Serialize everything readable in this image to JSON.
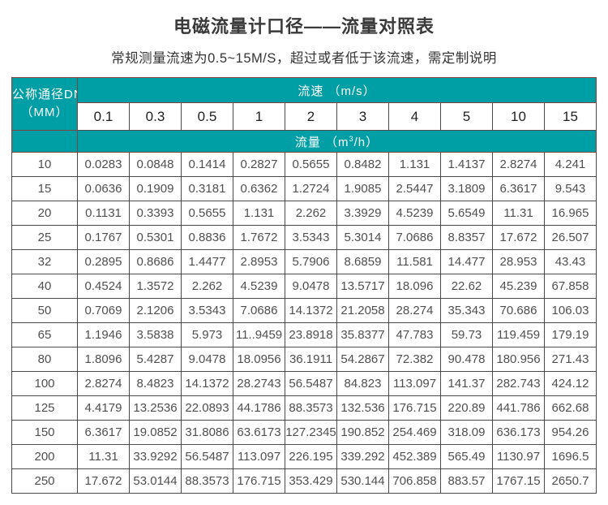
{
  "page": {
    "title": "电磁流量计口径——流量对照表",
    "subtitle": "常规测量流速为0.5~15M/S，超过或者低于该流速，需定制说明"
  },
  "colors": {
    "header_teal": "#009EA5",
    "header_border": "#7E463E",
    "grid_border": "#4A4A4A"
  },
  "table": {
    "corner_line1": "公称通径DN",
    "corner_line2": "（MM）",
    "velocity_header": "流速 （m/s）",
    "flow_label_pre": "流量 （m",
    "flow_label_sup": "3",
    "flow_label_post": "/h）",
    "velocities": [
      "0.1",
      "0.3",
      "0.5",
      "1",
      "2",
      "3",
      "4",
      "5",
      "10",
      "15"
    ],
    "rows": [
      {
        "dn": "10",
        "values": [
          "0.0283",
          "0.0848",
          "0.1414",
          "0.2827",
          "0.5655",
          "0.8482",
          "1.131",
          "1.4137",
          "2.8274",
          "4.241"
        ]
      },
      {
        "dn": "15",
        "values": [
          "0.0636",
          "0.1909",
          "0.3181",
          "0.6362",
          "1.2724",
          "1.9085",
          "2.5447",
          "3.1809",
          "6.3617",
          "9.543"
        ]
      },
      {
        "dn": "20",
        "values": [
          "0.1131",
          "0.3393",
          "0.5655",
          "1.131",
          "2.262",
          "3.3929",
          "4.5239",
          "5.6549",
          "11.31",
          "16.965"
        ]
      },
      {
        "dn": "25",
        "values": [
          "0.1767",
          "0.5301",
          "0.8836",
          "1.7672",
          "3.5343",
          "5.3014",
          "7.0686",
          "8.8357",
          "17.672",
          "26.507"
        ]
      },
      {
        "dn": "32",
        "values": [
          "0.2895",
          "0.8686",
          "1.4477",
          "2.8953",
          "5.7906",
          "8.6859",
          "11.581",
          "14.477",
          "28.953",
          "43.43"
        ]
      },
      {
        "dn": "40",
        "values": [
          "0.4524",
          "1.3572",
          "2.262",
          "4.5239",
          "9.0478",
          "13.5717",
          "18.096",
          "22.62",
          "45.239",
          "67.858"
        ]
      },
      {
        "dn": "50",
        "values": [
          "0.7069",
          "2.1206",
          "3.5343",
          "7.0686",
          "14.1372",
          "21.2058",
          "28.274",
          "35.343",
          "70.686",
          "106.03"
        ]
      },
      {
        "dn": "65",
        "values": [
          "1.1946",
          "3.5838",
          "5.973",
          "11..9459",
          "23.8918",
          "35.8377",
          "47.783",
          "59.73",
          "119.459",
          "179.19"
        ]
      },
      {
        "dn": "80",
        "values": [
          "1.8096",
          "5.4287",
          "9.0478",
          "18.0956",
          "36.1911",
          "54.2867",
          "72.382",
          "90.478",
          "180.956",
          "271.43"
        ]
      },
      {
        "dn": "100",
        "values": [
          "2.8274",
          "8.4823",
          "14.1372",
          "28.2743",
          "56.5487",
          "84.823",
          "113.097",
          "141.37",
          "282.743",
          "424.12"
        ]
      },
      {
        "dn": "125",
        "values": [
          "4.4179",
          "13.2536",
          "22.0893",
          "44.1786",
          "88.3573",
          "132.536",
          "176.715",
          "220.89",
          "441.786",
          "662.68"
        ]
      },
      {
        "dn": "150",
        "values": [
          "6.3617",
          "19.0852",
          "31.8086",
          "63.6173",
          "127.2345",
          "190.852",
          "254.469",
          "318.09",
          "636.173",
          "954.26"
        ]
      },
      {
        "dn": "200",
        "values": [
          "11.31",
          "33.9292",
          "56.5487",
          "113.097",
          "226.195",
          "339.292",
          "452.389",
          "565.49",
          "1130.97",
          "1696.5"
        ]
      },
      {
        "dn": "250",
        "values": [
          "17.672",
          "53.0144",
          "88.3573",
          "176.715",
          "353.429",
          "530.144",
          "706.858",
          "883.57",
          "1767.15",
          "2650.7"
        ]
      }
    ]
  }
}
